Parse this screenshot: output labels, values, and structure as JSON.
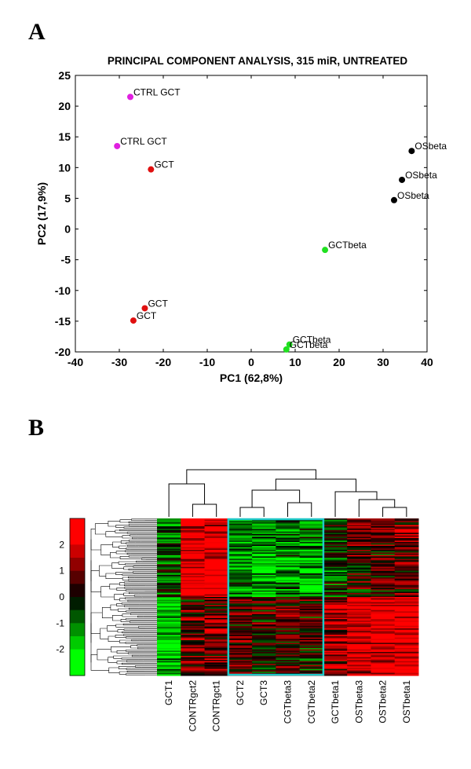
{
  "panels": {
    "a": "A",
    "b": "B"
  },
  "chart_data": [
    {
      "type": "scatter",
      "title": "PRINCIPAL COMPONENT ANALYSIS, 315 miR, UNTREATED",
      "xlabel": "PC1 (62,8%)",
      "ylabel": "PC2 (17,9%)",
      "xlim": [
        -40,
        40
      ],
      "ylim": [
        -20,
        25
      ],
      "xticks": [
        -40,
        -30,
        -20,
        -10,
        0,
        10,
        20,
        30,
        40
      ],
      "yticks": [
        -20,
        -15,
        -10,
        -5,
        0,
        5,
        10,
        15,
        20,
        25
      ],
      "grid": false,
      "colors": {
        "CTRL": "#e020e0",
        "GCT": "#e01010",
        "GCTbeta": "#20e020",
        "OSbeta": "#000000"
      },
      "points": [
        {
          "x": -27.5,
          "y": 21.5,
          "label": "CTRL GCT",
          "group": "CTRL"
        },
        {
          "x": -30.5,
          "y": 13.5,
          "label": "CTRL GCT",
          "group": "CTRL"
        },
        {
          "x": -22.8,
          "y": 9.7,
          "label": "GCT",
          "group": "GCT"
        },
        {
          "x": -24.2,
          "y": -12.9,
          "label": "GCT",
          "group": "GCT"
        },
        {
          "x": -26.8,
          "y": -14.9,
          "label": "GCT",
          "group": "GCT"
        },
        {
          "x": 16.8,
          "y": -3.4,
          "label": "GCTbeta",
          "group": "GCTbeta"
        },
        {
          "x": 8.7,
          "y": -18.8,
          "label": "GCTbeta",
          "group": "GCTbeta"
        },
        {
          "x": 8.0,
          "y": -19.6,
          "label": "GCTbeta",
          "group": "GCTbeta"
        },
        {
          "x": 36.5,
          "y": 12.7,
          "label": "OSbeta",
          "group": "OSbeta"
        },
        {
          "x": 34.3,
          "y": 8.0,
          "label": "OSbeta",
          "group": "OSbeta"
        },
        {
          "x": 32.5,
          "y": 4.7,
          "label": "OSbeta",
          "group": "OSbeta"
        }
      ]
    },
    {
      "type": "heatmap",
      "columns": [
        "GCT1",
        "CONTRgct2",
        "CONTRgct1",
        "GCT2",
        "GCT3",
        "CGTbeta3",
        "CGTbeta2",
        "GCTbeta1",
        "OSTbeta3",
        "OSTbeta2",
        "OSTbeta1"
      ],
      "colorbar_ticks": [
        2,
        1,
        0,
        -1,
        -2
      ],
      "colorbar_range": [
        -3,
        3
      ],
      "colors": {
        "low": "#00ff00",
        "mid": "#000000",
        "high": "#ff0000",
        "highlight_box": "#20c8c8"
      },
      "highlighted_columns": [
        "GCT2",
        "GCT3",
        "CGTbeta3",
        "CGTbeta2"
      ],
      "column_bias": [
        -1.0,
        1.2,
        1.3,
        -0.2,
        -0.5,
        -0.3,
        -0.4,
        0.4,
        1.1,
        1.2,
        1.3
      ]
    }
  ]
}
